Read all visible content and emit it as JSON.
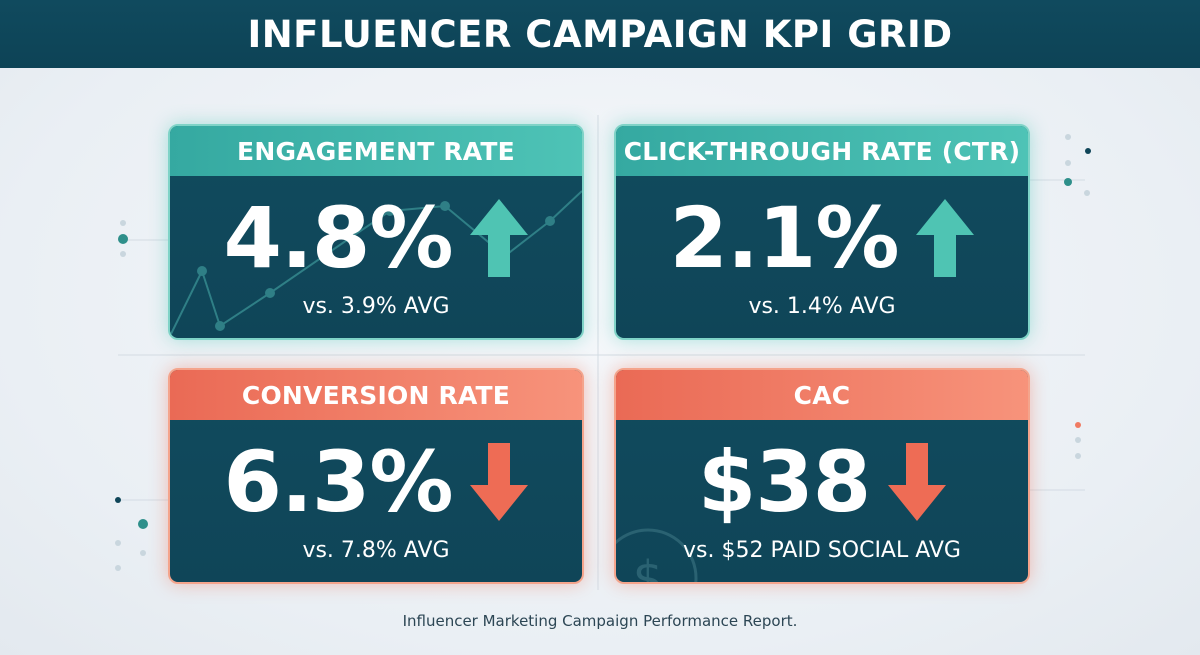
{
  "title": "INFLUENCER CAMPAIGN KPI GRID",
  "colors": {
    "navy": "#0f4558",
    "teal": "#4ec3b6",
    "coral": "#f07a62",
    "up_arrow": "#4fc4b3",
    "down_arrow": "#ee6c55"
  },
  "kpis": [
    {
      "label": "ENGAGEMENT RATE",
      "value": "4.8%",
      "trend": "up",
      "icon": "arrow-up-icon",
      "comparison": "vs. 3.9% AVG"
    },
    {
      "label": "CLICK-THROUGH RATE (CTR)",
      "value": "2.1%",
      "trend": "up",
      "icon": "arrow-up-icon",
      "comparison": "vs. 1.4% AVG"
    },
    {
      "label": "CONVERSION RATE",
      "value": "6.3%",
      "trend": "down",
      "icon": "arrow-down-icon",
      "comparison": "vs. 7.8% AVG"
    },
    {
      "label": "CAC",
      "value": "$38",
      "trend": "down",
      "icon": "arrow-down-icon",
      "comparison": "vs. $52 PAID SOCIAL AVG"
    }
  ],
  "footer": "Influencer Marketing Campaign Performance Report."
}
